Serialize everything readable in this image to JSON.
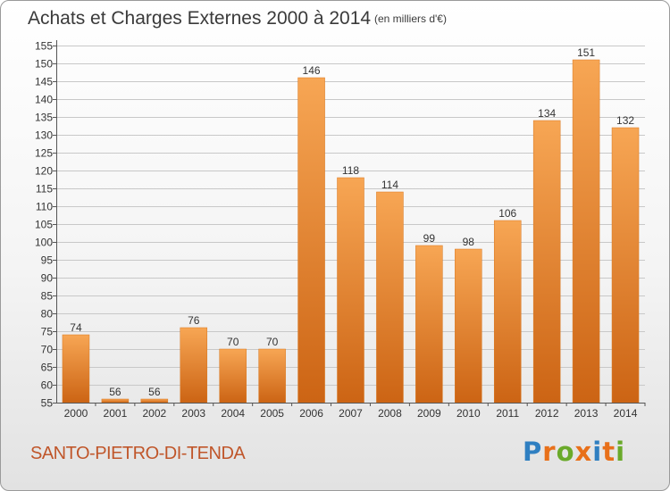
{
  "header": {
    "title": "Achats et Charges Externes 2000 à 2014",
    "subtitle": "(en milliers d'€)"
  },
  "footer": {
    "commune": "SANTO-PIETRO-DI-TENDA",
    "logo_text": "Proxiti",
    "logo_letters": [
      {
        "ch": "P",
        "color": "#2f7fc1"
      },
      {
        "ch": "r",
        "color": "#e8701a"
      },
      {
        "ch": "o",
        "color": "#6aaa2a"
      },
      {
        "ch": "x",
        "color": "#e8701a"
      },
      {
        "ch": "i",
        "color": "#2f7fc1"
      },
      {
        "ch": "t",
        "color": "#e8701a"
      },
      {
        "ch": "i",
        "color": "#6aaa2a"
      }
    ]
  },
  "colors": {
    "bar_top": "#f7a654",
    "bar_bottom": "#cc6414",
    "bar_edge": "#d97820",
    "gridline": "#c8c8c8",
    "axis": "#555555",
    "commune_text": "#c0562a"
  },
  "chart_data": {
    "type": "bar",
    "categories": [
      "2000",
      "2001",
      "2002",
      "2003",
      "2004",
      "2005",
      "2006",
      "2007",
      "2008",
      "2009",
      "2010",
      "2011",
      "2012",
      "2013",
      "2014"
    ],
    "values": [
      74,
      56,
      56,
      76,
      70,
      70,
      146,
      118,
      114,
      99,
      98,
      106,
      134,
      151,
      132
    ],
    "data_labels": [
      "74",
      "56",
      "56",
      "76",
      "70",
      "70",
      "146",
      "118",
      "114",
      "99",
      "98",
      "106",
      "134",
      "151",
      "132"
    ],
    "ylim": [
      55,
      155
    ],
    "yticks": [
      55,
      60,
      65,
      70,
      75,
      80,
      85,
      90,
      95,
      100,
      105,
      110,
      115,
      120,
      125,
      130,
      135,
      140,
      145,
      150,
      155
    ],
    "ytick_labels": [
      "55",
      "60",
      "65",
      "70",
      "75",
      "80",
      "85",
      "90",
      "95",
      "100",
      "105",
      "110",
      "115",
      "120",
      "125",
      "130",
      "135",
      "140",
      "145",
      "150",
      "155"
    ],
    "grid": true,
    "title": "Achats et Charges Externes 2000 à 2014",
    "xlabel": "",
    "ylabel": ""
  }
}
